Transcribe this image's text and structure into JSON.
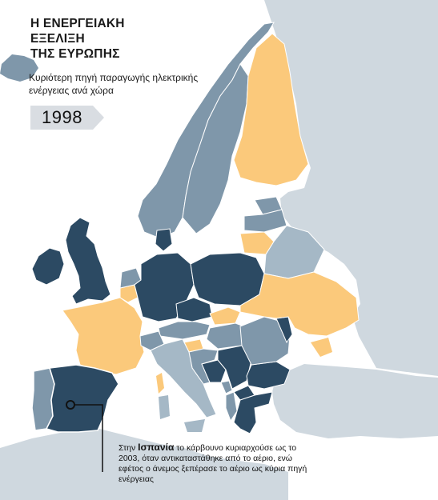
{
  "map": {
    "title_lines": [
      "Η ΕΝΕΡΓΕΙΑΚΗ",
      "ΕΞΕΛΙΞΗ",
      "ΤΗΣ ΕΥΡΩΠΗΣ"
    ],
    "subtitle": "Κυριότερη πηγή παραγωγής ηλεκτρικής ενέργειας ανά χώρα",
    "year": "1998",
    "colors": {
      "background_land": "#cfd8df",
      "sea": "#ffffff",
      "coal": "#2c4a63",
      "hydro": "#7f97aa",
      "gas": "#a5b8c6",
      "nuclear": "#fbc97b",
      "border": "#ffffff"
    },
    "regions": [
      {
        "id": "iceland",
        "category": "hydro"
      },
      {
        "id": "norway",
        "category": "hydro"
      },
      {
        "id": "sweden",
        "category": "hydro"
      },
      {
        "id": "finland",
        "category": "nuclear"
      },
      {
        "id": "estonia",
        "category": "hydro"
      },
      {
        "id": "latvia",
        "category": "hydro"
      },
      {
        "id": "lithuania",
        "category": "nuclear"
      },
      {
        "id": "ireland",
        "category": "coal"
      },
      {
        "id": "united-kingdom",
        "category": "coal"
      },
      {
        "id": "france",
        "category": "nuclear"
      },
      {
        "id": "belgium",
        "category": "nuclear"
      },
      {
        "id": "netherlands",
        "category": "hydro"
      },
      {
        "id": "germany",
        "category": "coal"
      },
      {
        "id": "denmark",
        "category": "coal"
      },
      {
        "id": "poland",
        "category": "coal"
      },
      {
        "id": "czechia",
        "category": "coal"
      },
      {
        "id": "slovakia",
        "category": "nuclear"
      },
      {
        "id": "austria",
        "category": "hydro"
      },
      {
        "id": "switzerland",
        "category": "hydro"
      },
      {
        "id": "hungary",
        "category": "hydro"
      },
      {
        "id": "slovenia",
        "category": "nuclear"
      },
      {
        "id": "croatia",
        "category": "hydro"
      },
      {
        "id": "bosnia",
        "category": "coal"
      },
      {
        "id": "serbia",
        "category": "coal"
      },
      {
        "id": "montenegro",
        "category": "hydro"
      },
      {
        "id": "north-macedonia",
        "category": "coal"
      },
      {
        "id": "albania",
        "category": "hydro"
      },
      {
        "id": "greece",
        "category": "coal"
      },
      {
        "id": "bulgaria",
        "category": "coal"
      },
      {
        "id": "romania",
        "category": "hydro"
      },
      {
        "id": "moldova",
        "category": "coal"
      },
      {
        "id": "ukraine",
        "category": "nuclear"
      },
      {
        "id": "belarus",
        "category": "gas"
      },
      {
        "id": "italy",
        "category": "gas"
      },
      {
        "id": "sardinia",
        "category": "gas"
      },
      {
        "id": "sicily",
        "category": "gas"
      },
      {
        "id": "corsica",
        "category": "nuclear"
      },
      {
        "id": "spain",
        "category": "coal"
      },
      {
        "id": "portugal",
        "category": "hydro"
      },
      {
        "id": "turkey",
        "category": "background"
      },
      {
        "id": "russia",
        "category": "background"
      },
      {
        "id": "north-africa",
        "category": "background"
      }
    ],
    "annotation": {
      "country": "Ισπανία",
      "lead": "Στην",
      "text": "το κάρβουνο κυριαρχούσε ως το 2003, όταν αντικαταστάθηκε από το αέριο, ενώ εφέτος ο άνεμος ξεπέρασε το αέριο ως κύρια πηγή ενέργειας"
    }
  }
}
